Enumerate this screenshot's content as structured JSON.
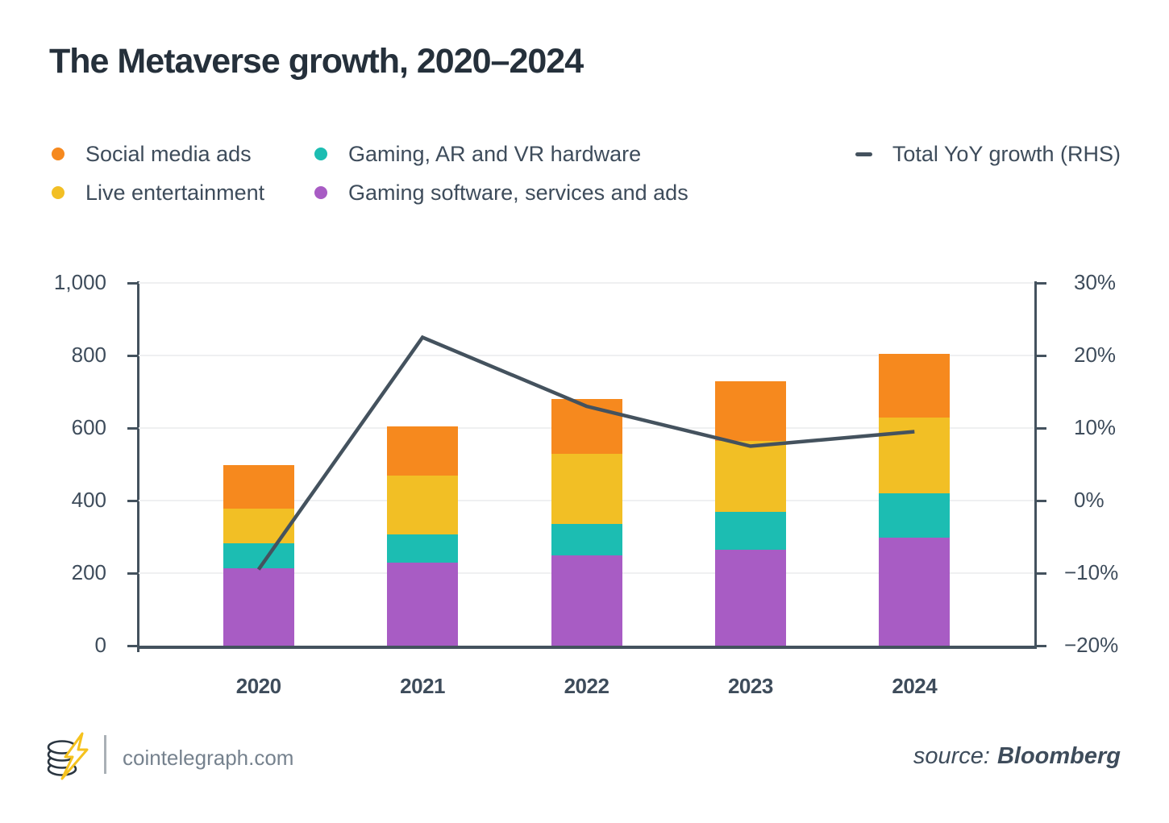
{
  "header": {
    "title": "The Metaverse growth, 2020–2024"
  },
  "legend": {
    "items": [
      {
        "label": "Social media ads",
        "marker": "dot",
        "color": "#F6891E",
        "column": 1
      },
      {
        "label": "Live entertainment",
        "marker": "dot",
        "color": "#F2BF25",
        "column": 1
      },
      {
        "label": "Gaming, AR and VR hardware",
        "marker": "dot",
        "color": "#1CBDB2",
        "column": 2
      },
      {
        "label": "Gaming software, services and ads",
        "marker": "dot",
        "color": "#A85CC4",
        "column": 2
      },
      {
        "label": "Total YoY growth (RHS)",
        "marker": "dash",
        "color": "#44525E",
        "column": 3
      }
    ]
  },
  "chart_data": {
    "type": "bar",
    "subtype": "stacked-column-with-line",
    "title": "The Metaverse growth, 2020–2024",
    "categories": [
      "2020",
      "2021",
      "2022",
      "2023",
      "2024"
    ],
    "series": [
      {
        "name": "Gaming software, services and ads",
        "color": "#A85CC4",
        "values": [
          213,
          230,
          248,
          265,
          297
        ]
      },
      {
        "name": "Gaming, AR and VR hardware",
        "color": "#1CBDB2",
        "values": [
          70,
          77,
          87,
          105,
          122
        ]
      },
      {
        "name": "Live entertainment",
        "color": "#F2BF25",
        "values": [
          95,
          163,
          195,
          195,
          211
        ]
      },
      {
        "name": "Social media ads",
        "color": "#F6891E",
        "values": [
          120,
          135,
          150,
          165,
          175
        ]
      }
    ],
    "stacked_totals": [
      498,
      605,
      680,
      730,
      805
    ],
    "line_series": {
      "name": "Total YoY growth (RHS)",
      "axis": "right",
      "color": "#44525E",
      "values_pct": [
        -9.5,
        22.5,
        13,
        7.5,
        9.5
      ]
    },
    "left_axis": {
      "min": 0,
      "max": 1000,
      "ticks": [
        {
          "value": 1000,
          "label": "1,000"
        },
        {
          "value": 800,
          "label": "800"
        },
        {
          "value": 600,
          "label": "600"
        },
        {
          "value": 400,
          "label": "400"
        },
        {
          "value": 200,
          "label": "200"
        },
        {
          "value": 0,
          "label": "0"
        }
      ]
    },
    "right_axis": {
      "min": -20,
      "max": 30,
      "ticks": [
        {
          "value": 30,
          "label": "30%"
        },
        {
          "value": 20,
          "label": "20%"
        },
        {
          "value": 10,
          "label": "10%"
        },
        {
          "value": 0,
          "label": "0%"
        },
        {
          "value": -10,
          "label": "−10%"
        },
        {
          "value": -20,
          "label": "−20%"
        }
      ]
    },
    "grid": true,
    "legend_position": "top"
  },
  "footer": {
    "brand": "cointelegraph.com",
    "source_label": "source:",
    "source_name": "Bloomberg"
  }
}
